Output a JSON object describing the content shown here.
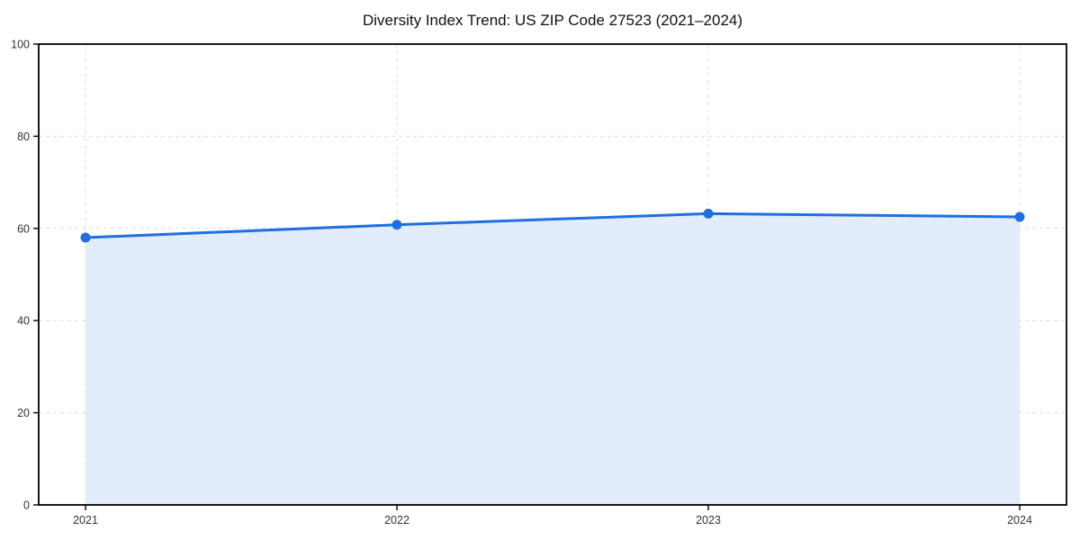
{
  "page": {
    "background_color": "#ffffff"
  },
  "chart_data": {
    "type": "area",
    "title": "Diversity Index Trend: US ZIP Code 27523 (2021–2024)",
    "xlabel": "",
    "ylabel": "",
    "x": [
      2021,
      2022,
      2023,
      2024
    ],
    "xticks": [
      "2021",
      "2022",
      "2023",
      "2024"
    ],
    "series": [
      {
        "name": "Diversity Index",
        "values": [
          58.0,
          60.8,
          63.2,
          62.5
        ]
      }
    ],
    "ylim": [
      0,
      100
    ],
    "yticks": [
      0,
      20,
      40,
      60,
      80,
      100
    ],
    "grid": "dashed",
    "legend": "none",
    "line_color": "#1f6fe0",
    "marker_color": "#1f6fe0",
    "fill_color": "#e2ecfb",
    "grid_color": "#dcdcdc",
    "border_color": "#000000",
    "tick_label_color": "#333333",
    "title_color": "#111111"
  }
}
